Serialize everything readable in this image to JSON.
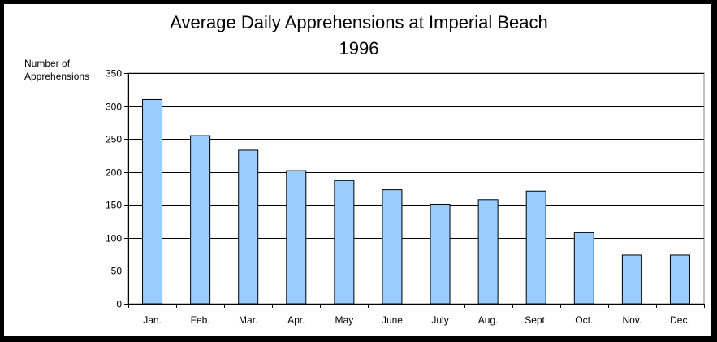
{
  "chart_data": {
    "type": "bar",
    "title_line1": "Average Daily Apprehensions at Imperial Beach",
    "title_line2": "1996",
    "ylabel_line1": "Number of",
    "ylabel_line2": "Apprehensions",
    "xlabel": "",
    "categories": [
      "Jan.",
      "Feb.",
      "Mar.",
      "Apr.",
      "May",
      "June",
      "July",
      "Aug.",
      "Sept.",
      "Oct.",
      "Nov.",
      "Dec."
    ],
    "values": [
      310,
      255,
      233,
      202,
      187,
      173,
      151,
      158,
      171,
      108,
      74,
      74
    ],
    "ylim": [
      0,
      350
    ],
    "yticks": [
      0,
      50,
      100,
      150,
      200,
      250,
      300,
      350
    ],
    "grid": true,
    "legend": "none",
    "colors": {
      "bar_fill": "#99ccff",
      "bar_stroke": "#000000",
      "background": "#ffffff",
      "frame": "#000000"
    }
  }
}
